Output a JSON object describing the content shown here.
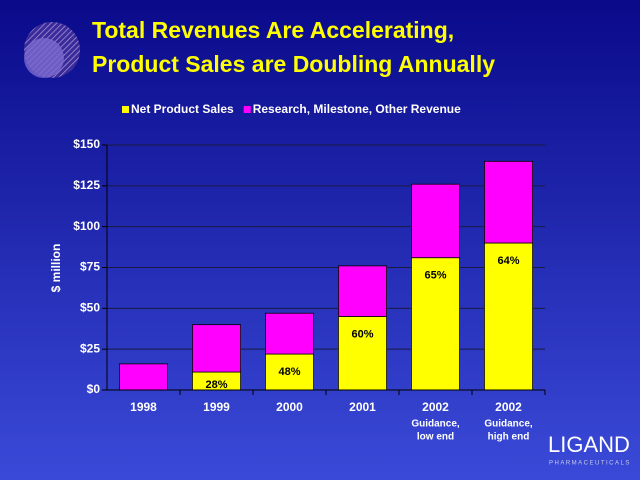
{
  "chart_data": {
    "type": "stacked_bar",
    "title": [
      "Total Revenues Are Accelerating,",
      "Product Sales are Doubling Annually"
    ],
    "y_label": "$ million",
    "categories": [
      "1998",
      "1999",
      "2000",
      "2001",
      "2002",
      "2002"
    ],
    "category_notes": [
      null,
      null,
      null,
      null,
      [
        "Guidance,",
        "low end"
      ],
      [
        "Guidance,",
        "high end"
      ]
    ],
    "series": [
      {
        "name": "Net Product Sales",
        "color": "#ffff00",
        "values": [
          0,
          11,
          22,
          45,
          81,
          90
        ],
        "share_labels": [
          null,
          "28%",
          "48%",
          "60%",
          "65%",
          "64%"
        ]
      },
      {
        "name": "Research, Milestone, Other Revenue",
        "color": "#ff00ff",
        "values": [
          16,
          29,
          25,
          31,
          45,
          50
        ]
      }
    ],
    "ylim": [
      0,
      150
    ],
    "yticks": [
      {
        "value": 0,
        "label": "$0"
      },
      {
        "value": 25,
        "label": "$25"
      },
      {
        "value": 50,
        "label": "$50"
      },
      {
        "value": 75,
        "label": "$75"
      },
      {
        "value": 100,
        "label": "$100"
      },
      {
        "value": 125,
        "label": "$125"
      },
      {
        "value": 150,
        "label": "$150"
      }
    ],
    "grid": true,
    "logo": {
      "name": "LIGAND",
      "subtitle": "PHARMACEUTICALS"
    }
  }
}
